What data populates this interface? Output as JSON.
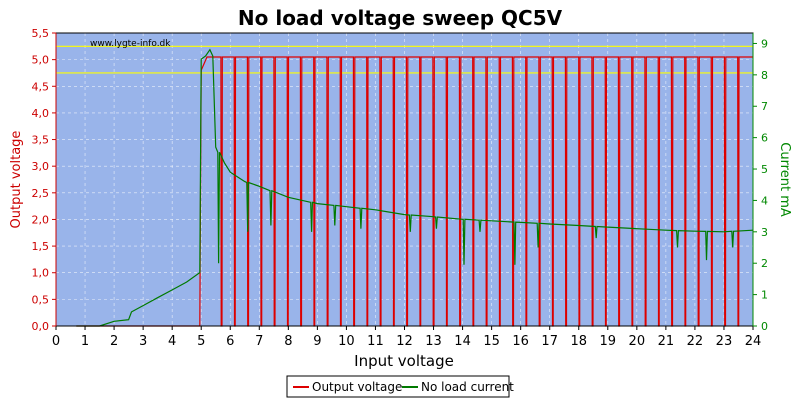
{
  "chart_data": {
    "type": "line",
    "title": "No load voltage sweep QC5V",
    "watermark": "www.lygte-info.dk",
    "xlabel": "Input voltage",
    "ylabel": "Output voltage",
    "y2label": "Current mA",
    "xlim": [
      0,
      24
    ],
    "ylim": [
      0,
      5.5
    ],
    "y2lim": [
      0,
      9.333
    ],
    "x_ticks": [
      "0",
      "1",
      "2",
      "3",
      "4",
      "5",
      "6",
      "7",
      "8",
      "9",
      "10",
      "11",
      "12",
      "13",
      "14",
      "15",
      "16",
      "17",
      "18",
      "19",
      "20",
      "21",
      "22",
      "23",
      "24"
    ],
    "y_ticks": [
      "0,0",
      "0,5",
      "1,0",
      "1,5",
      "2,0",
      "2,5",
      "3,0",
      "3,5",
      "4,0",
      "4,5",
      "5,0",
      "5,5"
    ],
    "y2_ticks": [
      "0",
      "1",
      "2",
      "3",
      "4",
      "5",
      "6",
      "7",
      "8",
      "9"
    ],
    "limit_lines": [
      4.75,
      5.25
    ],
    "grid": true,
    "legend_position": "bottom",
    "colors": {
      "plot_bg": "#99b4ea",
      "voltage": "#dd0000",
      "current": "#007a00",
      "left_axis": "#cc0000",
      "right_axis": "#008800",
      "limit": "#ffff00"
    },
    "series": [
      {
        "name": "Output voltage",
        "axis": "left",
        "pulse_high": 5.05,
        "pulse_low": 0.0,
        "pulse_start": 5.35,
        "pulse_end": 23.6,
        "pulse_count": 40,
        "points": [
          [
            0.7,
            0
          ],
          [
            4.95,
            0
          ],
          [
            5.0,
            4.8
          ],
          [
            5.2,
            5.05
          ],
          [
            5.35,
            5.05
          ]
        ]
      },
      {
        "name": "No load current",
        "axis": "right",
        "points": [
          [
            0.7,
            0
          ],
          [
            1.5,
            0
          ],
          [
            2.0,
            0.15
          ],
          [
            2.5,
            0.2
          ],
          [
            2.6,
            0.45
          ],
          [
            3,
            0.65
          ],
          [
            3.5,
            0.9
          ],
          [
            4,
            1.15
          ],
          [
            4.5,
            1.4
          ],
          [
            4.95,
            1.7
          ],
          [
            5.0,
            8.5
          ],
          [
            5.15,
            8.6
          ],
          [
            5.3,
            8.8
          ],
          [
            5.4,
            8.6
          ],
          [
            5.5,
            5.7
          ],
          [
            5.8,
            5.2
          ],
          [
            6,
            4.9
          ],
          [
            6.5,
            4.6
          ],
          [
            7,
            4.45
          ],
          [
            8,
            4.1
          ],
          [
            9,
            3.9
          ],
          [
            10,
            3.8
          ],
          [
            11,
            3.7
          ],
          [
            12,
            3.55
          ],
          [
            13,
            3.48
          ],
          [
            14,
            3.4
          ],
          [
            15,
            3.35
          ],
          [
            16,
            3.3
          ],
          [
            17,
            3.25
          ],
          [
            18,
            3.2
          ],
          [
            19,
            3.15
          ],
          [
            20,
            3.1
          ],
          [
            21,
            3.05
          ],
          [
            22,
            3.02
          ],
          [
            23,
            3.0
          ],
          [
            24,
            3.05
          ]
        ],
        "dips": [
          [
            5.6,
            2.0
          ],
          [
            6.6,
            3.0
          ],
          [
            7.4,
            3.2
          ],
          [
            8.8,
            3.0
          ],
          [
            9.6,
            3.2
          ],
          [
            10.5,
            3.1
          ],
          [
            12.2,
            3.0
          ],
          [
            13.1,
            3.1
          ],
          [
            14.05,
            1.95
          ],
          [
            14.6,
            3.0
          ],
          [
            15.8,
            1.95
          ],
          [
            16.6,
            2.5
          ],
          [
            18.6,
            2.8
          ],
          [
            21.4,
            2.5
          ],
          [
            22.4,
            2.1
          ],
          [
            23.3,
            2.5
          ]
        ]
      }
    ]
  }
}
